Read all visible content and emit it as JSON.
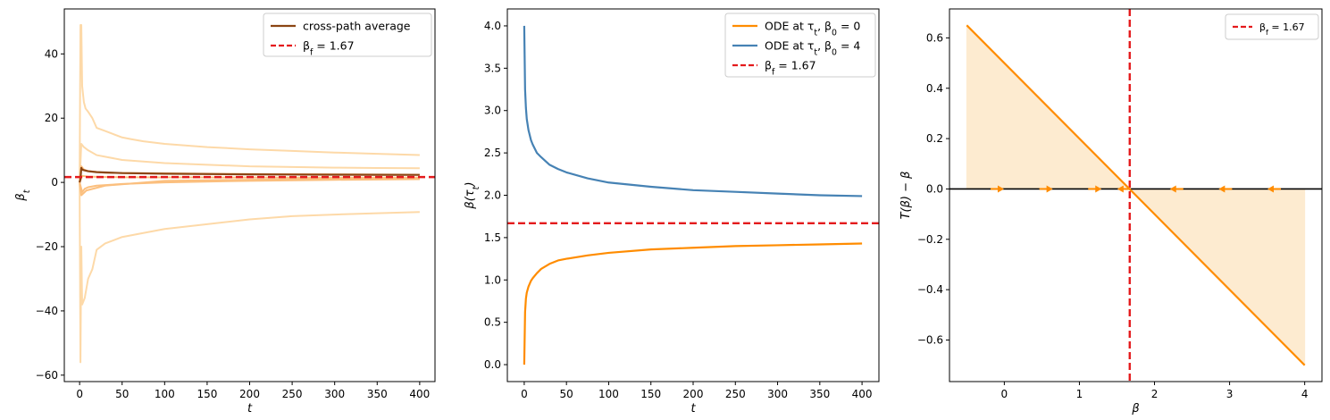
{
  "chart_data": [
    {
      "type": "line",
      "xlabel": "t",
      "ylabel": "β_t",
      "xlim": [
        -18,
        418
      ],
      "ylim": [
        -62,
        54
      ],
      "xticks": [
        0,
        50,
        100,
        150,
        200,
        250,
        300,
        350,
        400
      ],
      "yticks": [
        -60,
        -40,
        -20,
        0,
        20,
        40
      ],
      "legend": {
        "placement": "top-right",
        "entries": [
          {
            "label": "cross-path average",
            "color": "#8b4513",
            "dash": false
          },
          {
            "label": "β_f = 1.67",
            "color": "#e41a1c",
            "dash": true
          }
        ]
      },
      "hline": {
        "y": 1.67,
        "color": "#e41a1c",
        "dash": true
      },
      "paths": [
        {
          "color": "#fdd9a8",
          "points": [
            [
              0,
              0
            ],
            [
              1,
              49
            ],
            [
              2,
              49
            ],
            [
              3,
              30
            ],
            [
              5,
              25
            ],
            [
              7,
              23
            ],
            [
              10,
              22
            ],
            [
              15,
              20
            ],
            [
              20,
              17
            ],
            [
              30,
              16
            ],
            [
              40,
              15
            ],
            [
              50,
              14
            ],
            [
              60,
              13.5
            ],
            [
              75,
              12.8
            ],
            [
              100,
              12
            ],
            [
              150,
              11
            ],
            [
              200,
              10.3
            ],
            [
              250,
              9.8
            ],
            [
              300,
              9.3
            ],
            [
              350,
              8.9
            ],
            [
              400,
              8.5
            ]
          ]
        },
        {
          "color": "#fdd9a8",
          "points": [
            [
              0,
              0
            ],
            [
              1,
              -56
            ],
            [
              2,
              -20
            ],
            [
              3,
              -38
            ],
            [
              6,
              -36
            ],
            [
              8,
              -33
            ],
            [
              10,
              -30
            ],
            [
              15,
              -27
            ],
            [
              20,
              -21
            ],
            [
              30,
              -19
            ],
            [
              50,
              -17
            ],
            [
              70,
              -16
            ],
            [
              100,
              -14.5
            ],
            [
              150,
              -13
            ],
            [
              200,
              -11.5
            ],
            [
              250,
              -10.5
            ],
            [
              300,
              -10
            ],
            [
              350,
              -9.6
            ],
            [
              400,
              -9.2
            ]
          ]
        },
        {
          "color": "#fdd9a8",
          "points": [
            [
              0,
              0
            ],
            [
              2,
              12
            ],
            [
              5,
              11
            ],
            [
              10,
              10
            ],
            [
              20,
              8.5
            ],
            [
              30,
              8
            ],
            [
              50,
              7
            ],
            [
              100,
              6
            ],
            [
              150,
              5.5
            ],
            [
              200,
              5
            ],
            [
              250,
              4.8
            ],
            [
              300,
              4.6
            ],
            [
              350,
              4.5
            ],
            [
              400,
              4.4
            ]
          ]
        },
        {
          "color": "#fbbf7e",
          "points": [
            [
              0,
              0
            ],
            [
              3,
              -3
            ],
            [
              6,
              -2
            ],
            [
              10,
              -1.5
            ],
            [
              20,
              -1
            ],
            [
              50,
              -0.5
            ],
            [
              100,
              0
            ],
            [
              200,
              0.5
            ],
            [
              300,
              0.8
            ],
            [
              400,
              1
            ]
          ]
        },
        {
          "color": "#fbbf7e",
          "points": [
            [
              0,
              0
            ],
            [
              2,
              5
            ],
            [
              5,
              4
            ],
            [
              10,
              3.5
            ],
            [
              30,
              3
            ],
            [
              100,
              2.8
            ],
            [
              200,
              2.6
            ],
            [
              300,
              2.5
            ],
            [
              400,
              2.4
            ]
          ]
        },
        {
          "color": "#fbbf7e",
          "points": [
            [
              0,
              0
            ],
            [
              3,
              2
            ],
            [
              10,
              1.8
            ],
            [
              50,
              1.6
            ],
            [
              150,
              1.55
            ],
            [
              300,
              1.5
            ],
            [
              400,
              1.5
            ]
          ]
        },
        {
          "color": "#fbbf7e",
          "points": [
            [
              0,
              0
            ],
            [
              2,
              -4
            ],
            [
              8,
              -2.5
            ],
            [
              30,
              -1
            ],
            [
              100,
              0.5
            ],
            [
              250,
              1
            ],
            [
              400,
              1.2
            ]
          ]
        }
      ],
      "series": [
        {
          "name": "cross-path average",
          "color": "#8b4513",
          "points": [
            [
              0,
              0
            ],
            [
              1,
              1
            ],
            [
              2,
              4.5
            ],
            [
              3,
              4
            ],
            [
              5,
              3.8
            ],
            [
              10,
              3.5
            ],
            [
              20,
              3.2
            ],
            [
              50,
              2.9
            ],
            [
              100,
              2.7
            ],
            [
              150,
              2.6
            ],
            [
              200,
              2.5
            ],
            [
              250,
              2.45
            ],
            [
              300,
              2.4
            ],
            [
              350,
              2.37
            ],
            [
              400,
              2.35
            ]
          ]
        }
      ]
    },
    {
      "type": "line",
      "xlabel": "t",
      "ylabel": "β(τ_t)",
      "xlim": [
        -20,
        420
      ],
      "ylim": [
        -0.2,
        4.2
      ],
      "xticks": [
        0,
        50,
        100,
        150,
        200,
        250,
        300,
        350,
        400
      ],
      "yticks": [
        0.0,
        0.5,
        1.0,
        1.5,
        2.0,
        2.5,
        3.0,
        3.5,
        4.0
      ],
      "legend": {
        "placement": "top-right",
        "entries": [
          {
            "label": "ODE at τ_t, β_0 = 0",
            "color": "#ff8c00",
            "dash": false
          },
          {
            "label": "ODE at τ_t, β_0 = 4",
            "color": "#4682b4",
            "dash": false
          },
          {
            "label": "β_f = 1.67",
            "color": "#e41a1c",
            "dash": true
          }
        ]
      },
      "hline": {
        "y": 1.67,
        "color": "#e41a1c",
        "dash": true
      },
      "series": [
        {
          "name": "ODE at τ_t, β_0 = 0",
          "color": "#ff8c00",
          "points": [
            [
              0,
              0
            ],
            [
              1,
              0.62
            ],
            [
              2,
              0.78
            ],
            [
              3,
              0.85
            ],
            [
              5,
              0.92
            ],
            [
              8,
              0.99
            ],
            [
              10,
              1.02
            ],
            [
              15,
              1.08
            ],
            [
              20,
              1.13
            ],
            [
              30,
              1.19
            ],
            [
              40,
              1.23
            ],
            [
              50,
              1.25
            ],
            [
              75,
              1.29
            ],
            [
              100,
              1.32
            ],
            [
              150,
              1.36
            ],
            [
              200,
              1.38
            ],
            [
              250,
              1.4
            ],
            [
              300,
              1.41
            ],
            [
              350,
              1.42
            ],
            [
              400,
              1.43
            ]
          ]
        },
        {
          "name": "ODE at τ_t, β_0 = 4",
          "color": "#4682b4",
          "points": [
            [
              0,
              4
            ],
            [
              1,
              3.25
            ],
            [
              2,
              3.03
            ],
            [
              3,
              2.9
            ],
            [
              5,
              2.77
            ],
            [
              8,
              2.65
            ],
            [
              10,
              2.6
            ],
            [
              15,
              2.5
            ],
            [
              20,
              2.45
            ],
            [
              30,
              2.36
            ],
            [
              40,
              2.31
            ],
            [
              50,
              2.27
            ],
            [
              75,
              2.2
            ],
            [
              100,
              2.15
            ],
            [
              150,
              2.1
            ],
            [
              200,
              2.06
            ],
            [
              250,
              2.04
            ],
            [
              300,
              2.02
            ],
            [
              350,
              2.0
            ],
            [
              400,
              1.99
            ]
          ]
        }
      ]
    },
    {
      "type": "line",
      "xlabel": "β",
      "ylabel": "T(β) − β",
      "xlim": [
        -0.73,
        4.23
      ],
      "ylim": [
        -0.765,
        0.715
      ],
      "xticks": [
        0,
        1,
        2,
        3,
        4
      ],
      "yticks": [
        -0.6,
        -0.4,
        -0.2,
        0.0,
        0.2,
        0.4,
        0.6
      ],
      "legend": {
        "placement": "top-right",
        "entries": [
          {
            "label": "β_f = 1.67",
            "color": "#e41a1c",
            "dash": true
          }
        ]
      },
      "hline": {
        "y": 0,
        "color": "#000000"
      },
      "vline": {
        "x": 1.67,
        "color": "#e41a1c",
        "dash": true
      },
      "series": [
        {
          "name": "T(β) − β",
          "color": "#ff8c00",
          "points": [
            [
              -0.5,
              0.65
            ],
            [
              4,
              -0.7
            ]
          ]
        }
      ],
      "flow_arrows": [
        {
          "x": -0.1,
          "dir": "right"
        },
        {
          "x": 0.55,
          "dir": "right"
        },
        {
          "x": 1.2,
          "dir": "right"
        },
        {
          "x": 1.6,
          "dir": "left"
        },
        {
          "x": 2.3,
          "dir": "left"
        },
        {
          "x": 2.95,
          "dir": "left"
        },
        {
          "x": 3.6,
          "dir": "left"
        }
      ],
      "fill_color": "#fdebd0"
    }
  ]
}
